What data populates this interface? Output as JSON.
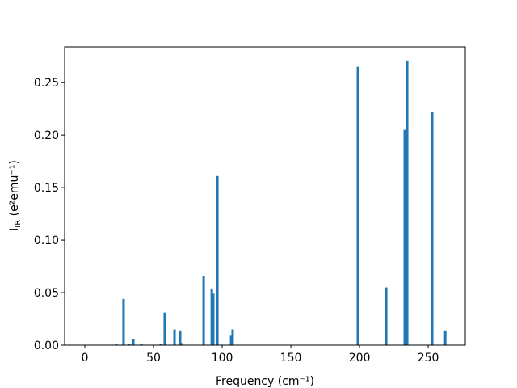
{
  "chart_data": {
    "type": "bar",
    "xlabel": "Frequency (cm⁻¹)",
    "ylabel": {
      "main": "I",
      "sub": "IR",
      "rest": " (e²emu⁻¹)"
    },
    "color": "#1f77b4",
    "x": [
      22.9,
      28.2,
      32.4,
      35.3,
      41.2,
      55.3,
      58.2,
      65.3,
      69.4,
      70.6,
      86.5,
      92.4,
      93.5,
      96.5,
      106.5,
      107.6,
      198.8,
      219.4,
      232.9,
      234.7,
      252.9,
      262.4
    ],
    "values": [
      0.001,
      0.044,
      0.001,
      0.006,
      0.001,
      0.001,
      0.031,
      0.015,
      0.014,
      0.002,
      0.066,
      0.054,
      0.049,
      0.161,
      0.009,
      0.015,
      0.265,
      0.055,
      0.205,
      0.271,
      0.222,
      0.014
    ],
    "xlim": [
      -14.7,
      277
    ],
    "ylim": [
      0,
      0.284
    ],
    "xticks": [
      0,
      50,
      100,
      150,
      200,
      250
    ],
    "yticks": [
      {
        "value": 0,
        "label": "0.00"
      },
      {
        "value": 0.05,
        "label": "0.05"
      },
      {
        "value": 0.1,
        "label": "0.10"
      },
      {
        "value": 0.15,
        "label": "0.15"
      },
      {
        "value": 0.2,
        "label": "0.20"
      },
      {
        "value": 0.25,
        "label": "0.25"
      }
    ]
  }
}
